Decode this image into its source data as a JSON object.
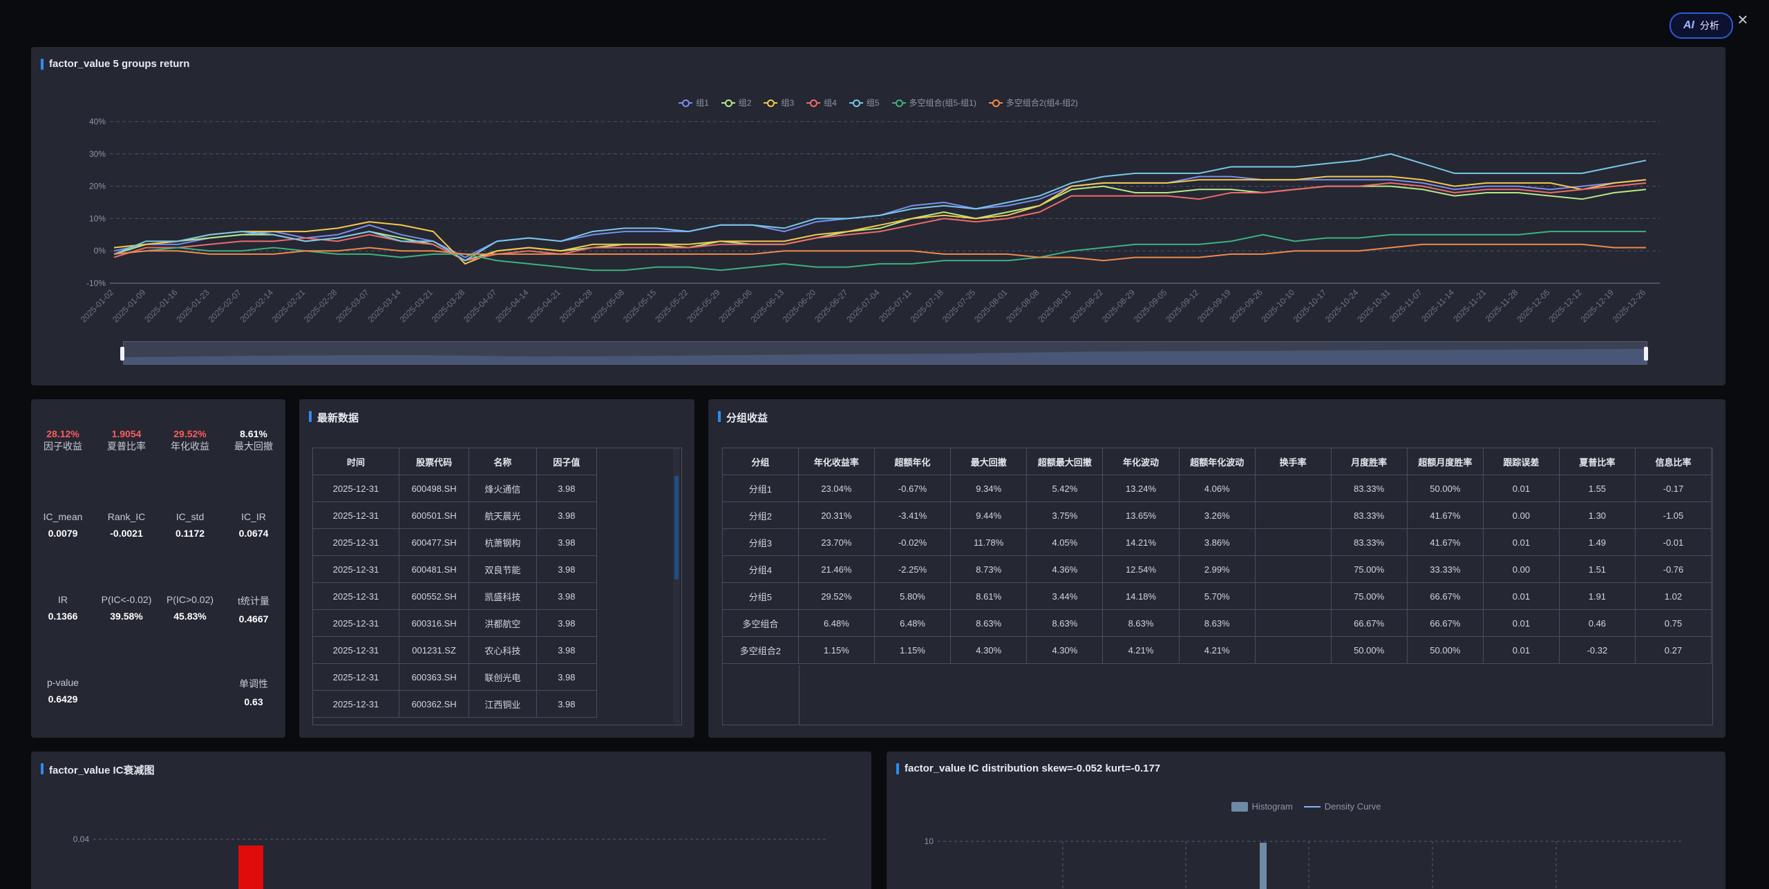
{
  "ai_button": {
    "icon": "AI",
    "label": "分析"
  },
  "close_icon": "×",
  "returns_panel": {
    "title": "factor_value 5 groups return",
    "legend": [
      {
        "name": "组1",
        "color": "#7b8ff0"
      },
      {
        "name": "组2",
        "color": "#b8e986"
      },
      {
        "name": "组3",
        "color": "#f5c94b"
      },
      {
        "name": "组4",
        "color": "#ef6b6b"
      },
      {
        "name": "组5",
        "color": "#79c8e8"
      },
      {
        "name": "多空组合(组5-组1)",
        "color": "#3fb27f"
      },
      {
        "name": "多空组合2(组4-组2)",
        "color": "#f08a4b"
      }
    ]
  },
  "chart_data": {
    "type": "line",
    "title": "factor_value 5 groups return",
    "ylim": [
      -10,
      40
    ],
    "yticks": [
      "-10%",
      "0%",
      "10%",
      "20%",
      "30%",
      "40%"
    ],
    "x": [
      "2025-01-02",
      "2025-01-09",
      "2025-01-16",
      "2025-01-23",
      "2025-02-07",
      "2025-02-14",
      "2025-02-21",
      "2025-02-28",
      "2025-03-07",
      "2025-03-14",
      "2025-03-21",
      "2025-03-28",
      "2025-04-07",
      "2025-04-14",
      "2025-04-21",
      "2025-04-28",
      "2025-05-08",
      "2025-05-15",
      "2025-05-22",
      "2025-05-29",
      "2025-06-06",
      "2025-06-13",
      "2025-06-20",
      "2025-06-27",
      "2025-07-04",
      "2025-07-11",
      "2025-07-18",
      "2025-07-25",
      "2025-08-01",
      "2025-08-08",
      "2025-08-15",
      "2025-08-22",
      "2025-08-29",
      "2025-09-05",
      "2025-09-12",
      "2025-09-19",
      "2025-09-26",
      "2025-10-10",
      "2025-10-17",
      "2025-10-24",
      "2025-10-31",
      "2025-11-07",
      "2025-11-14",
      "2025-11-21",
      "2025-11-28",
      "2025-12-05",
      "2025-12-12",
      "2025-12-19",
      "2025-12-26"
    ],
    "series": [
      {
        "name": "组1",
        "color": "#7b8ff0",
        "values": [
          0,
          2,
          2,
          4,
          5,
          6,
          4,
          5,
          8,
          5,
          3,
          -2,
          3,
          4,
          3,
          5,
          6,
          6,
          6,
          8,
          8,
          6,
          9,
          10,
          11,
          14,
          15,
          13,
          14,
          16,
          20,
          21,
          21,
          21,
          23,
          23,
          22,
          22,
          22,
          22,
          22,
          21,
          19,
          20,
          20,
          19,
          20,
          21,
          22
        ]
      },
      {
        "name": "组2",
        "color": "#b8e986",
        "values": [
          -1,
          2,
          3,
          4,
          5,
          5,
          3,
          4,
          6,
          4,
          2,
          -3,
          0,
          1,
          0,
          1,
          2,
          2,
          1,
          3,
          2,
          2,
          4,
          6,
          7,
          10,
          12,
          10,
          12,
          14,
          19,
          20,
          18,
          18,
          19,
          19,
          18,
          19,
          20,
          20,
          20,
          19,
          17,
          18,
          18,
          17,
          16,
          18,
          19
        ]
      },
      {
        "name": "组3",
        "color": "#f5c94b",
        "values": [
          1,
          2,
          3,
          5,
          6,
          6,
          6,
          7,
          9,
          8,
          6,
          -4,
          0,
          1,
          0,
          2,
          2,
          2,
          2,
          3,
          3,
          3,
          5,
          6,
          8,
          10,
          11,
          10,
          11,
          14,
          20,
          21,
          21,
          21,
          22,
          22,
          22,
          22,
          23,
          23,
          23,
          22,
          20,
          21,
          21,
          21,
          19,
          21,
          22
        ]
      },
      {
        "name": "组4",
        "color": "#ef6b6b",
        "values": [
          -2,
          1,
          1,
          2,
          3,
          3,
          4,
          3,
          5,
          3,
          2,
          -3,
          -1,
          0,
          -1,
          1,
          1,
          1,
          1,
          2,
          2,
          2,
          4,
          5,
          6,
          8,
          10,
          9,
          10,
          12,
          17,
          17,
          17,
          17,
          16,
          18,
          18,
          19,
          20,
          20,
          21,
          20,
          18,
          19,
          19,
          18,
          19,
          20,
          21
        ]
      },
      {
        "name": "组5",
        "color": "#79c8e8",
        "values": [
          -1,
          3,
          3,
          5,
          6,
          5,
          3,
          4,
          6,
          3,
          3,
          -3,
          3,
          4,
          3,
          6,
          7,
          7,
          6,
          8,
          8,
          7,
          10,
          10,
          11,
          13,
          14,
          13,
          15,
          17,
          21,
          23,
          24,
          24,
          24,
          26,
          26,
          26,
          27,
          28,
          30,
          27,
          24,
          24,
          24,
          24,
          24,
          26,
          28
        ]
      },
      {
        "name": "多空组合(组5-组1)",
        "color": "#3fb27f",
        "values": [
          -1,
          0,
          1,
          0,
          0,
          1,
          0,
          -1,
          -1,
          -2,
          -1,
          -1,
          -3,
          -4,
          -5,
          -6,
          -6,
          -5,
          -5,
          -6,
          -5,
          -4,
          -5,
          -5,
          -4,
          -4,
          -3,
          -3,
          -3,
          -2,
          0,
          1,
          2,
          2,
          2,
          3,
          5,
          3,
          4,
          4,
          5,
          5,
          5,
          5,
          5,
          6,
          6,
          6,
          6
        ]
      },
      {
        "name": "多空组合2(组4-组2)",
        "color": "#f08a4b",
        "values": [
          -1,
          0,
          0,
          -1,
          -1,
          -1,
          0,
          0,
          1,
          0,
          0,
          -1,
          -1,
          -1,
          -1,
          -1,
          -1,
          -1,
          -1,
          -1,
          -1,
          0,
          0,
          0,
          0,
          0,
          -1,
          -1,
          -1,
          -2,
          -2,
          -3,
          -2,
          -2,
          -2,
          -1,
          -1,
          0,
          0,
          0,
          1,
          2,
          2,
          2,
          2,
          2,
          2,
          1,
          1
        ]
      }
    ]
  },
  "stats": [
    {
      "value": "28.12%",
      "label": "因子收益",
      "color": "#ff5c5c"
    },
    {
      "value": "1.9054",
      "label": "夏普比率",
      "color": "#ff5c5c"
    },
    {
      "value": "29.52%",
      "label": "年化收益",
      "color": "#ff5c5c"
    },
    {
      "value": "8.61%",
      "label": "最大回撤",
      "color": "#ffffff"
    },
    {
      "value": "0.0079",
      "label": "IC_mean",
      "color": "#ffffff"
    },
    {
      "value": "-0.0021",
      "label": "Rank_IC",
      "color": "#ffffff"
    },
    {
      "value": "0.1172",
      "label": "IC_std",
      "color": "#ffffff"
    },
    {
      "value": "0.0674",
      "label": "IC_IR",
      "color": "#ffffff"
    },
    {
      "value": "0.1366",
      "label": "IR",
      "color": "#ffffff"
    },
    {
      "value": "39.58%",
      "label": "P(IC<-0.02)",
      "color": "#ffffff"
    },
    {
      "value": "45.83%",
      "label": "P(IC>0.02)",
      "color": "#ffffff"
    },
    {
      "value": "0.4667",
      "label": "t统计量",
      "color": "#ffffff"
    },
    {
      "value": "0.6429",
      "label": "p-value",
      "color": "#ffffff"
    },
    {
      "value": "0.63",
      "label": "单调性",
      "color": "#ffffff"
    }
  ],
  "latest": {
    "title": "最新数据",
    "headers": [
      "时间",
      "股票代码",
      "名称",
      "因子值"
    ],
    "rows": [
      [
        "2025-12-31",
        "600498.SH",
        "烽火通信",
        "3.98"
      ],
      [
        "2025-12-31",
        "600501.SH",
        "航天晨光",
        "3.98"
      ],
      [
        "2025-12-31",
        "600477.SH",
        "杭萧钢构",
        "3.98"
      ],
      [
        "2025-12-31",
        "600481.SH",
        "双良节能",
        "3.98"
      ],
      [
        "2025-12-31",
        "600552.SH",
        "凯盛科技",
        "3.98"
      ],
      [
        "2025-12-31",
        "600316.SH",
        "洪都航空",
        "3.98"
      ],
      [
        "2025-12-31",
        "001231.SZ",
        "农心科技",
        "3.98"
      ],
      [
        "2025-12-31",
        "600363.SH",
        "联创光电",
        "3.98"
      ],
      [
        "2025-12-31",
        "600362.SH",
        "江西铜业",
        "3.98"
      ]
    ]
  },
  "group_returns": {
    "title": "分组收益",
    "headers": [
      "分组",
      "年化收益率",
      "超额年化",
      "最大回撤",
      "超额最大回撤",
      "年化波动",
      "超额年化波动",
      "换手率",
      "月度胜率",
      "超额月度胜率",
      "跟踪误差",
      "夏普比率",
      "信息比率"
    ],
    "rows": [
      [
        "分组1",
        "23.04%",
        "-0.67%",
        "9.34%",
        "5.42%",
        "13.24%",
        "4.06%",
        "",
        "83.33%",
        "50.00%",
        "0.01",
        "1.55",
        "-0.17"
      ],
      [
        "分组2",
        "20.31%",
        "-3.41%",
        "9.44%",
        "3.75%",
        "13.65%",
        "3.26%",
        "",
        "83.33%",
        "41.67%",
        "0.00",
        "1.30",
        "-1.05"
      ],
      [
        "分组3",
        "23.70%",
        "-0.02%",
        "11.78%",
        "4.05%",
        "14.21%",
        "3.86%",
        "",
        "83.33%",
        "41.67%",
        "0.01",
        "1.49",
        "-0.01"
      ],
      [
        "分组4",
        "21.46%",
        "-2.25%",
        "8.73%",
        "4.36%",
        "12.54%",
        "2.99%",
        "",
        "75.00%",
        "33.33%",
        "0.00",
        "1.51",
        "-0.76"
      ],
      [
        "分组5",
        "29.52%",
        "5.80%",
        "8.61%",
        "3.44%",
        "14.18%",
        "5.70%",
        "",
        "75.00%",
        "66.67%",
        "0.01",
        "1.91",
        "1.02"
      ],
      [
        "多空组合",
        "6.48%",
        "6.48%",
        "8.63%",
        "8.63%",
        "8.63%",
        "8.63%",
        "",
        "66.67%",
        "66.67%",
        "0.01",
        "0.46",
        "0.75"
      ],
      [
        "多空组合2",
        "1.15%",
        "1.15%",
        "4.30%",
        "4.30%",
        "4.21%",
        "4.21%",
        "",
        "50.00%",
        "50.00%",
        "0.01",
        "-0.32",
        "0.27"
      ]
    ]
  },
  "ic_decay": {
    "title": "factor_value IC衰减图",
    "ytick": "0.04",
    "bar_value": 0.04
  },
  "ic_dist": {
    "title": "factor_value IC distribution skew=-0.052 kurt=-0.177",
    "legend": [
      "Histogram",
      "Density Curve"
    ],
    "ytick": "10"
  }
}
